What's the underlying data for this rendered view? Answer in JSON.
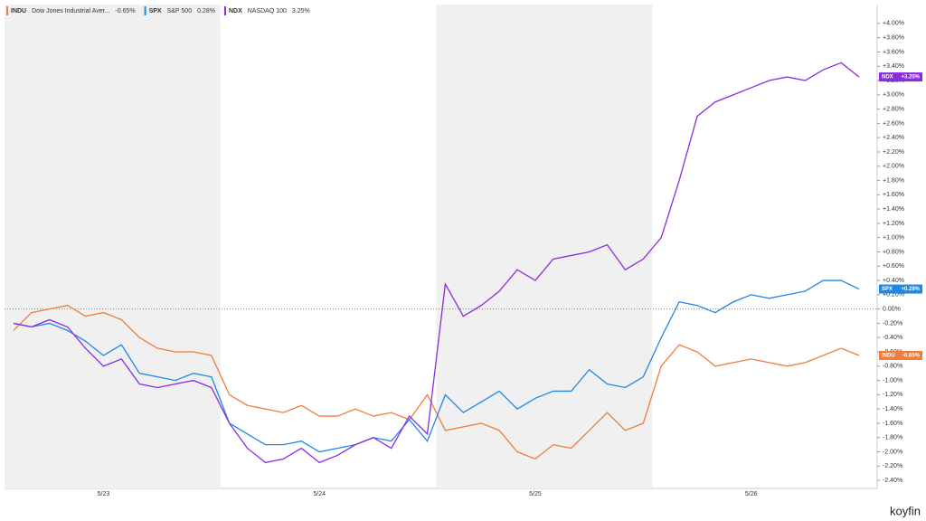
{
  "chart_data": {
    "type": "line",
    "categories": [
      null,
      null,
      null,
      null,
      null,
      "5/23",
      null,
      null,
      null,
      null,
      null,
      null,
      null,
      null,
      null,
      null,
      null,
      "5/24",
      null,
      null,
      null,
      null,
      null,
      null,
      null,
      null,
      null,
      null,
      null,
      "5/25",
      null,
      null,
      null,
      null,
      null,
      null,
      null,
      null,
      null,
      null,
      null,
      "5/26",
      null,
      null,
      null,
      null,
      null,
      null
    ],
    "series": [
      {
        "ticker": "INDU",
        "name": "Dow Jones Industrial Aver...",
        "change": "-0.65%",
        "tag_label": "-0.65%",
        "color": "#f07c3e",
        "values": [
          -0.3,
          -0.05,
          0.0,
          0.05,
          -0.1,
          -0.05,
          -0.15,
          -0.4,
          -0.55,
          -0.6,
          -0.6,
          -0.65,
          -1.2,
          -1.35,
          -1.4,
          -1.45,
          -1.35,
          -1.5,
          -1.5,
          -1.4,
          -1.5,
          -1.45,
          -1.55,
          -1.2,
          -1.7,
          -1.65,
          -1.6,
          -1.7,
          -2.0,
          -2.1,
          -1.9,
          -1.95,
          -1.7,
          -1.45,
          -1.7,
          -1.6,
          -0.8,
          -0.5,
          -0.6,
          -0.8,
          -0.75,
          -0.7,
          -0.75,
          -0.8,
          -0.75,
          -0.65,
          -0.55,
          -0.65
        ]
      },
      {
        "ticker": "SPX",
        "name": "S&P 500",
        "change": "0.28%",
        "tag_label": "+0.28%",
        "color": "#1e88e5",
        "values": [
          -0.2,
          -0.25,
          -0.2,
          -0.3,
          -0.45,
          -0.65,
          -0.5,
          -0.9,
          -0.95,
          -1.0,
          -0.9,
          -0.95,
          -1.6,
          -1.75,
          -1.9,
          -1.9,
          -1.85,
          -2.0,
          -1.95,
          -1.9,
          -1.8,
          -1.85,
          -1.55,
          -1.85,
          -1.2,
          -1.45,
          -1.3,
          -1.15,
          -1.4,
          -1.25,
          -1.15,
          -1.15,
          -0.85,
          -1.05,
          -1.1,
          -0.95,
          -0.4,
          0.1,
          0.05,
          -0.05,
          0.1,
          0.2,
          0.15,
          0.2,
          0.25,
          0.4,
          0.4,
          0.28
        ]
      },
      {
        "ticker": "NDX",
        "name": "NASDAQ 100",
        "change": "3.25%",
        "tag_label": "+3.25%",
        "color": "#8a2be2",
        "values": [
          -0.2,
          -0.25,
          -0.15,
          -0.25,
          -0.55,
          -0.8,
          -0.7,
          -1.05,
          -1.1,
          -1.05,
          -1.0,
          -1.1,
          -1.6,
          -1.95,
          -2.15,
          -2.1,
          -1.95,
          -2.15,
          -2.05,
          -1.9,
          -1.8,
          -1.95,
          -1.5,
          -1.75,
          0.35,
          -0.1,
          0.05,
          0.25,
          0.55,
          0.4,
          0.7,
          0.75,
          0.8,
          0.9,
          0.55,
          0.7,
          1.0,
          1.8,
          2.7,
          2.9,
          3.0,
          3.1,
          3.2,
          3.25,
          3.2,
          3.35,
          3.45,
          3.25
        ]
      }
    ],
    "ylim": [
      -2.5,
      4.1
    ],
    "yticks": [
      {
        "value": 4.0,
        "label": "+4.00%"
      },
      {
        "value": 3.8,
        "label": "+3.80%"
      },
      {
        "value": 3.6,
        "label": "+3.60%"
      },
      {
        "value": 3.4,
        "label": "+3.40%"
      },
      {
        "value": 3.2,
        "label": "+3.20%"
      },
      {
        "value": 3.0,
        "label": "+3.00%"
      },
      {
        "value": 2.8,
        "label": "+2.80%"
      },
      {
        "value": 2.6,
        "label": "+2.60%"
      },
      {
        "value": 2.4,
        "label": "+2.40%"
      },
      {
        "value": 2.2,
        "label": "+2.20%"
      },
      {
        "value": 2.0,
        "label": "+2.00%"
      },
      {
        "value": 1.8,
        "label": "+1.80%"
      },
      {
        "value": 1.6,
        "label": "+1.60%"
      },
      {
        "value": 1.4,
        "label": "+1.40%"
      },
      {
        "value": 1.2,
        "label": "+1.20%"
      },
      {
        "value": 1.0,
        "label": "+1.00%"
      },
      {
        "value": 0.8,
        "label": "+0.80%"
      },
      {
        "value": 0.6,
        "label": "+0.60%"
      },
      {
        "value": 0.4,
        "label": "+0.40%"
      },
      {
        "value": 0.2,
        "label": "+0.20%"
      },
      {
        "value": 0.0,
        "label": "0.00%"
      },
      {
        "value": -0.2,
        "label": "-0.20%"
      },
      {
        "value": -0.4,
        "label": "-0.40%"
      },
      {
        "value": -0.6,
        "label": "-0.60%"
      },
      {
        "value": -0.8,
        "label": "-0.80%"
      },
      {
        "value": -1.0,
        "label": "-1.00%"
      },
      {
        "value": -1.2,
        "label": "-1.20%"
      },
      {
        "value": -1.4,
        "label": "-1.40%"
      },
      {
        "value": -1.6,
        "label": "-1.60%"
      },
      {
        "value": -1.8,
        "label": "-1.80%"
      },
      {
        "value": -2.0,
        "label": "-2.00%"
      },
      {
        "value": -2.2,
        "label": "-2.20%"
      },
      {
        "value": -2.4,
        "label": "-2.40%"
      }
    ],
    "logo": "koyfin"
  }
}
